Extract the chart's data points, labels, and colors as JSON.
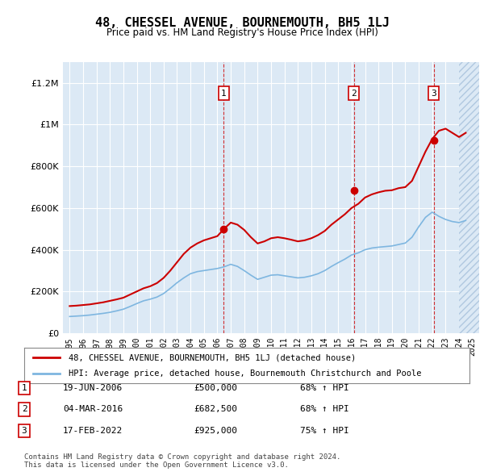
{
  "title": "48, CHESSEL AVENUE, BOURNEMOUTH, BH5 1LJ",
  "subtitle": "Price paid vs. HM Land Registry's House Price Index (HPI)",
  "xlabel": "",
  "ylabel": "",
  "ylim": [
    0,
    1300000
  ],
  "yticks": [
    0,
    200000,
    400000,
    600000,
    800000,
    1000000,
    1200000
  ],
  "ytick_labels": [
    "£0",
    "£200K",
    "£400K",
    "£600K",
    "£800K",
    "£1M",
    "£1.2M"
  ],
  "x_start_year": 1995,
  "x_end_year": 2025,
  "background_color": "#dce9f5",
  "plot_bg_color": "#dce9f5",
  "hatch_color": "#c0d4e8",
  "grid_color": "#ffffff",
  "red_line_color": "#cc0000",
  "blue_line_color": "#7eb6e0",
  "transaction_color": "#cc0000",
  "vline_color": "#cc0000",
  "sale_events": [
    {
      "year": 2006.47,
      "price": 500000,
      "label": "1"
    },
    {
      "year": 2016.17,
      "price": 682500,
      "label": "2"
    },
    {
      "year": 2022.12,
      "price": 925000,
      "label": "3"
    }
  ],
  "legend_line1": "48, CHESSEL AVENUE, BOURNEMOUTH, BH5 1LJ (detached house)",
  "legend_line2": "HPI: Average price, detached house, Bournemouth Christchurch and Poole",
  "table_entries": [
    {
      "num": "1",
      "date": "19-JUN-2006",
      "price": "£500,000",
      "change": "68% ↑ HPI"
    },
    {
      "num": "2",
      "date": "04-MAR-2016",
      "price": "£682,500",
      "change": "68% ↑ HPI"
    },
    {
      "num": "3",
      "date": "17-FEB-2022",
      "price": "£925,000",
      "change": "75% ↑ HPI"
    }
  ],
  "footnote": "Contains HM Land Registry data © Crown copyright and database right 2024.\nThis data is licensed under the Open Government Licence v3.0.",
  "red_hpi_data": {
    "years": [
      1995.0,
      1995.5,
      1996.0,
      1996.5,
      1997.0,
      1997.5,
      1998.0,
      1998.5,
      1999.0,
      1999.5,
      2000.0,
      2000.5,
      2001.0,
      2001.5,
      2002.0,
      2002.5,
      2003.0,
      2003.5,
      2004.0,
      2004.5,
      2005.0,
      2005.5,
      2006.0,
      2006.5,
      2007.0,
      2007.5,
      2008.0,
      2008.5,
      2009.0,
      2009.5,
      2010.0,
      2010.5,
      2011.0,
      2011.5,
      2012.0,
      2012.5,
      2013.0,
      2013.5,
      2014.0,
      2014.5,
      2015.0,
      2015.5,
      2016.0,
      2016.5,
      2017.0,
      2017.5,
      2018.0,
      2018.5,
      2019.0,
      2019.5,
      2020.0,
      2020.5,
      2021.0,
      2021.5,
      2022.0,
      2022.5,
      2023.0,
      2023.5,
      2024.0,
      2024.5
    ],
    "values": [
      130000,
      132000,
      135000,
      138000,
      143000,
      148000,
      155000,
      162000,
      170000,
      185000,
      200000,
      215000,
      225000,
      240000,
      265000,
      300000,
      340000,
      380000,
      410000,
      430000,
      445000,
      455000,
      465000,
      500000,
      530000,
      520000,
      495000,
      460000,
      430000,
      440000,
      455000,
      460000,
      455000,
      448000,
      440000,
      445000,
      455000,
      470000,
      490000,
      520000,
      545000,
      570000,
      600000,
      620000,
      650000,
      665000,
      675000,
      682500,
      685000,
      695000,
      700000,
      730000,
      800000,
      870000,
      930000,
      970000,
      980000,
      960000,
      940000,
      960000
    ]
  },
  "blue_hpi_data": {
    "years": [
      1995.0,
      1995.5,
      1996.0,
      1996.5,
      1997.0,
      1997.5,
      1998.0,
      1998.5,
      1999.0,
      1999.5,
      2000.0,
      2000.5,
      2001.0,
      2001.5,
      2002.0,
      2002.5,
      2003.0,
      2003.5,
      2004.0,
      2004.5,
      2005.0,
      2005.5,
      2006.0,
      2006.5,
      2007.0,
      2007.5,
      2008.0,
      2008.5,
      2009.0,
      2009.5,
      2010.0,
      2010.5,
      2011.0,
      2011.5,
      2012.0,
      2012.5,
      2013.0,
      2013.5,
      2014.0,
      2014.5,
      2015.0,
      2015.5,
      2016.0,
      2016.5,
      2017.0,
      2017.5,
      2018.0,
      2018.5,
      2019.0,
      2019.5,
      2020.0,
      2020.5,
      2021.0,
      2021.5,
      2022.0,
      2022.5,
      2023.0,
      2023.5,
      2024.0,
      2024.5
    ],
    "values": [
      80000,
      82000,
      84000,
      87000,
      91000,
      95000,
      100000,
      107000,
      115000,
      128000,
      142000,
      155000,
      163000,
      173000,
      190000,
      215000,
      242000,
      265000,
      285000,
      295000,
      300000,
      305000,
      310000,
      318000,
      330000,
      320000,
      300000,
      278000,
      258000,
      268000,
      278000,
      280000,
      275000,
      270000,
      265000,
      268000,
      275000,
      285000,
      300000,
      320000,
      338000,
      355000,
      375000,
      385000,
      400000,
      408000,
      412000,
      415000,
      418000,
      425000,
      432000,
      460000,
      510000,
      555000,
      580000,
      560000,
      545000,
      535000,
      530000,
      540000
    ]
  }
}
